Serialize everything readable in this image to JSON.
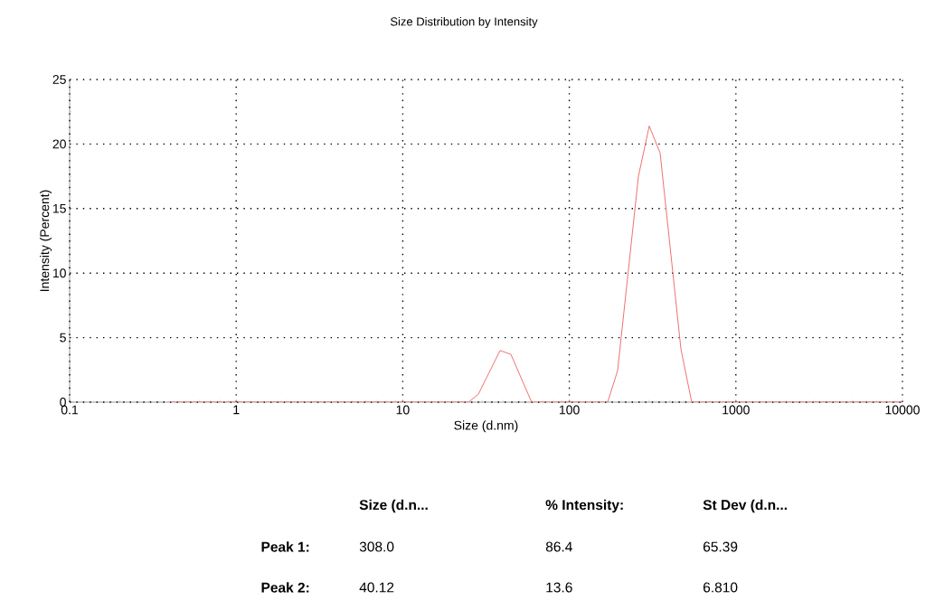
{
  "chart_data": {
    "type": "line",
    "title": "Size Distribution by Intensity",
    "xlabel": "Size (d.nm)",
    "ylabel": "Intensity (Percent)",
    "series": [
      {
        "color": "#f07070",
        "x": [
          0.4,
          10,
          24.8,
          28.4,
          38.4,
          44.6,
          59.4,
          100,
          170,
          195,
          260,
          302,
          351,
          468,
          543,
          1000,
          10000
        ],
        "values": [
          0,
          0,
          0,
          0.6,
          4.0,
          3.7,
          0,
          0,
          0,
          2.45,
          17.5,
          21.4,
          19.3,
          4.1,
          0,
          0,
          0
        ]
      }
    ],
    "xlim": [
      0.1,
      10000
    ],
    "ylim": [
      0,
      25
    ],
    "xticks": [
      0.1,
      1,
      10,
      100,
      1000,
      10000
    ],
    "yticks": [
      0,
      5,
      10,
      15,
      20,
      25
    ],
    "log": "x",
    "grid": true,
    "marker": "none",
    "line_style": "solid",
    "annotations": [
      "Size (d.n...",
      "% Intensity:",
      "St Dev (d.n...",
      "Peak 1:",
      "308.0",
      "86.4",
      "65.39",
      "Peak 2:",
      "40.12",
      "13.6",
      "6.810"
    ]
  }
}
